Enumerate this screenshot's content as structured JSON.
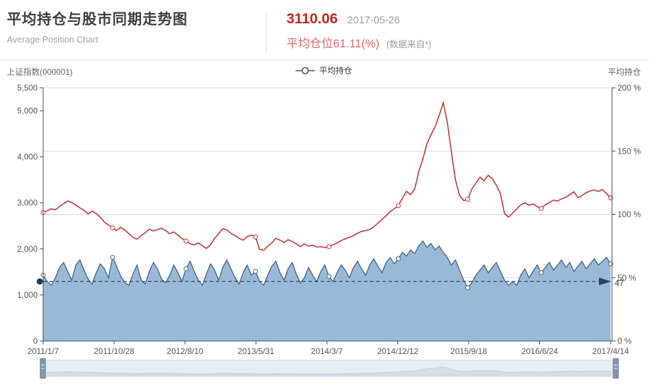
{
  "header": {
    "title": "平均持仓与股市同期走势图",
    "subtitle": "Average Position Chart",
    "index_value": "3110.06",
    "date": "2017-05-26",
    "position_label": "平均仓位61.11(%)",
    "source_note": "(数据来自*)"
  },
  "chart": {
    "left_axis_name": "上证指数(000001)",
    "legend_label": "平均持仓",
    "right_axis_name": "平均持仓"
  },
  "colors": {
    "index_line": "#c23531",
    "position_line": "#3f608a",
    "position_fill": "#8fb1d2",
    "markline": "#27415f",
    "grid": "#d9d9d9",
    "axis": "#444444",
    "tick_text": "#555555",
    "slider_track": "#e8edf3",
    "slider_border": "#ccd5e0",
    "slider_silhouette": "#c2ccd8",
    "slider_handle": "#8496ab"
  },
  "chart_data": {
    "type": "line",
    "title": "平均持仓与股市同期走势图",
    "x_tick_labels": [
      "2011/1/7",
      "2011/10/28",
      "2012/8/10",
      "2013/5/31",
      "2014/3/7",
      "2014/12/12",
      "2015/9/18",
      "2016/6/24",
      "2017/4/14"
    ],
    "left_axis": {
      "name": "上证指数(000001)",
      "min": 0,
      "max": 5500,
      "ticks": [
        0,
        1000,
        2000,
        3000,
        4000,
        5000,
        5500
      ],
      "tick_labels": [
        "0",
        "1,000",
        "2,000",
        "3,000",
        "4,000",
        "5,000",
        "5,500"
      ]
    },
    "right_axis": {
      "name": "平均持仓",
      "min": 0,
      "max": 200,
      "ticks": [
        0,
        50,
        100,
        150,
        200
      ],
      "tick_labels": [
        "0 %",
        "50 %",
        "100 %",
        "150 %",
        "200 %"
      ]
    },
    "grid_at_right_ticks": [
      50,
      100,
      150,
      200
    ],
    "marker_indices": [
      0,
      17,
      35,
      52,
      70,
      87,
      104,
      122,
      139
    ],
    "markline": {
      "value": 47,
      "label": "47",
      "axis": "right"
    },
    "series": [
      {
        "name": "上证指数",
        "axis": "left",
        "values": [
          2790,
          2830,
          2870,
          2850,
          2920,
          2980,
          3040,
          3010,
          2950,
          2890,
          2840,
          2760,
          2820,
          2770,
          2690,
          2580,
          2520,
          2460,
          2400,
          2470,
          2410,
          2330,
          2250,
          2210,
          2290,
          2350,
          2430,
          2390,
          2420,
          2450,
          2400,
          2330,
          2370,
          2300,
          2230,
          2170,
          2110,
          2090,
          2130,
          2070,
          2010,
          2090,
          2230,
          2330,
          2440,
          2410,
          2340,
          2290,
          2230,
          2190,
          2270,
          2300,
          2260,
          1990,
          1970,
          2060,
          2130,
          2230,
          2190,
          2140,
          2200,
          2160,
          2110,
          2050,
          2110,
          2060,
          2080,
          2040,
          2050,
          2030,
          2050,
          2090,
          2130,
          2180,
          2220,
          2250,
          2290,
          2340,
          2380,
          2400,
          2420,
          2480,
          2560,
          2640,
          2720,
          2810,
          2870,
          2940,
          3100,
          3250,
          3180,
          3300,
          3680,
          3950,
          4280,
          4480,
          4650,
          4900,
          5180,
          4750,
          4100,
          3500,
          3160,
          3050,
          3080,
          3300,
          3430,
          3560,
          3480,
          3600,
          3530,
          3380,
          3200,
          2770,
          2690,
          2780,
          2870,
          2960,
          3000,
          2950,
          2980,
          2920,
          2880,
          2960,
          3010,
          3060,
          3040,
          3090,
          3120,
          3180,
          3240,
          3110,
          3160,
          3220,
          3260,
          3280,
          3250,
          3290,
          3200,
          3110
        ]
      },
      {
        "name": "平均持仓",
        "axis": "right",
        "values": [
          52,
          47,
          44,
          50,
          58,
          62,
          55,
          48,
          60,
          64,
          56,
          49,
          45,
          54,
          61,
          57,
          50,
          66,
          59,
          51,
          46,
          44,
          53,
          60,
          48,
          45,
          55,
          62,
          57,
          49,
          46,
          52,
          60,
          54,
          47,
          57,
          63,
          55,
          48,
          44,
          53,
          61,
          56,
          48,
          58,
          64,
          57,
          50,
          45,
          54,
          60,
          52,
          55,
          47,
          44,
          52,
          59,
          63,
          54,
          48,
          57,
          62,
          53,
          46,
          50,
          58,
          52,
          47,
          55,
          60,
          51,
          47,
          54,
          60,
          56,
          50,
          58,
          63,
          57,
          52,
          60,
          65,
          59,
          54,
          62,
          66,
          61,
          65,
          70,
          67,
          72,
          69,
          75,
          79,
          74,
          77,
          72,
          75,
          70,
          66,
          60,
          64,
          56,
          48,
          42,
          46,
          52,
          56,
          60,
          54,
          58,
          62,
          55,
          48,
          44,
          47,
          44,
          52,
          57,
          50,
          55,
          60,
          54,
          58,
          62,
          56,
          60,
          64,
          58,
          62,
          55,
          59,
          63,
          57,
          61,
          65,
          60,
          63,
          66,
          61
        ]
      }
    ]
  }
}
